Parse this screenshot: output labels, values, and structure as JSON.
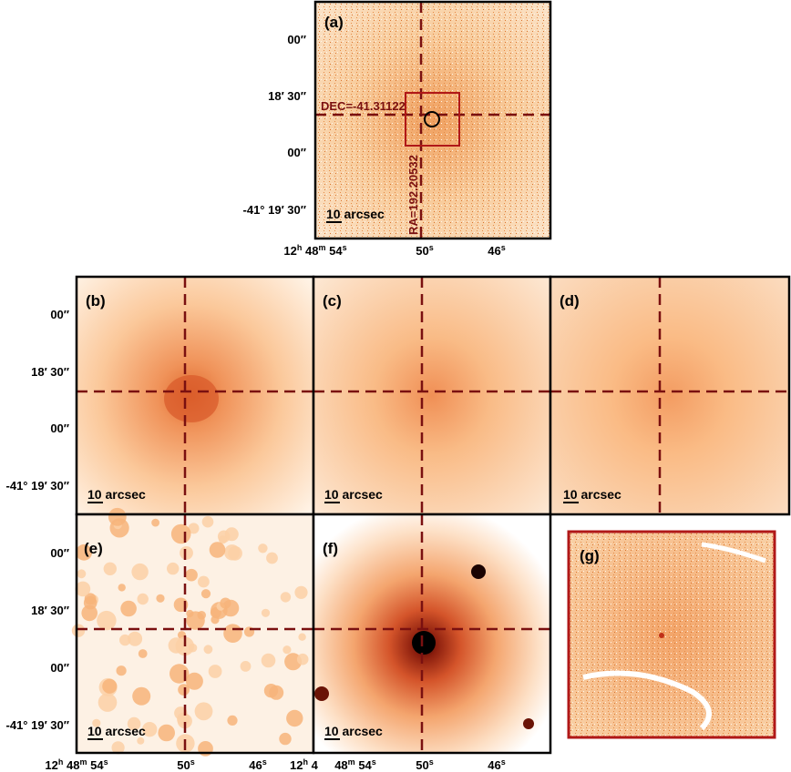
{
  "panels": [
    {
      "id": "a",
      "label": "(a)",
      "scalebar": "10 arcsec",
      "crosshair": {
        "dec_label": "DEC=-41.31122",
        "ra_label": "RA=192.20532"
      }
    },
    {
      "id": "b",
      "label": "(b)",
      "scalebar": "10 arcsec"
    },
    {
      "id": "c",
      "label": "(c)",
      "scalebar": "10 arcsec"
    },
    {
      "id": "d",
      "label": "(d)",
      "scalebar": "10 arcsec"
    },
    {
      "id": "e",
      "label": "(e)",
      "scalebar": "10 arcsec"
    },
    {
      "id": "f",
      "label": "(f)",
      "scalebar": "10 arcsec"
    },
    {
      "id": "g",
      "label": "(g)"
    }
  ],
  "dec_ticks": [
    "00″",
    "18′ 30″",
    "00″",
    "-41° 19′ 30″"
  ],
  "ra_ticks": {
    "first": {
      "h": "12",
      "hs": "h",
      "m": "48",
      "ms": "m",
      "s": "54",
      "ss": "s"
    },
    "mid": {
      "s": "50",
      "ss": "s"
    },
    "last": {
      "s": "46",
      "ss": "s"
    }
  },
  "ra_ticks_e_extra": {
    "h": "12",
    "hs": "h",
    "m": "4"
  },
  "colors": {
    "frame": "#000000",
    "crosshair": "#7a1010",
    "highlight": "#b01818",
    "colormap": [
      "#ffffff",
      "#fde3c4",
      "#f9b77d",
      "#e5732f",
      "#b5351a",
      "#5a0d06",
      "#000000"
    ]
  }
}
